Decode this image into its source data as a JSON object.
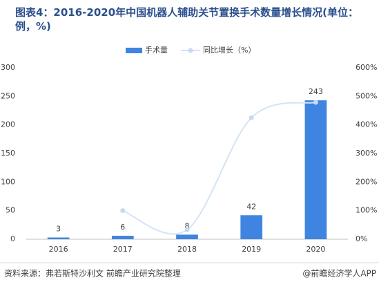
{
  "chart_data": {
    "type": "bar_line",
    "title": "图表4：2016-2020年中国机器人辅助关节置换手术数量增长情况(单位：例，%)",
    "categories": [
      "2016",
      "2017",
      "2018",
      "2019",
      "2020"
    ],
    "series": [
      {
        "name": "手术量",
        "type": "bar",
        "color": "#3f84e0",
        "values": [
          3,
          6,
          8,
          42,
          243
        ]
      },
      {
        "name": "同比增长（%）",
        "type": "line",
        "axis": "y2",
        "color": "#d4e3f6",
        "values": [
          null,
          100,
          33,
          425,
          479
        ]
      }
    ],
    "ylim": [
      0,
      300
    ],
    "yticks": [
      0,
      50,
      100,
      150,
      200,
      250,
      300
    ],
    "y2lim": [
      0,
      600
    ],
    "y2ticks": [
      {
        "value": 0,
        "label": "0%"
      },
      {
        "value": 100,
        "label": "100%"
      },
      {
        "value": 200,
        "label": "200%"
      },
      {
        "value": 300,
        "label": "300%"
      },
      {
        "value": 400,
        "label": "400%"
      },
      {
        "value": 500,
        "label": "500%"
      },
      {
        "value": 600,
        "label": "600%"
      }
    ],
    "grid": false,
    "source": "资料来源：弗若斯特沙利文 前瞻产业研究院整理",
    "brand": "@前瞻经济学人APP"
  }
}
